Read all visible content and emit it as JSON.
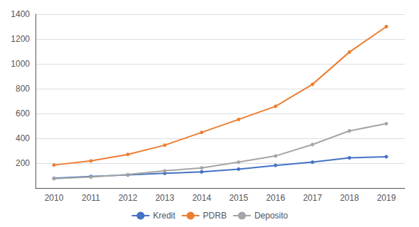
{
  "chart_data": {
    "type": "line",
    "categories": [
      "2010",
      "2011",
      "2012",
      "2013",
      "2014",
      "2015",
      "2016",
      "2017",
      "2018",
      "2019"
    ],
    "series": [
      {
        "name": "Kredit",
        "color": "#4472C4",
        "values": [
          78,
          93,
          105,
          118,
          130,
          152,
          182,
          208,
          243,
          252
        ]
      },
      {
        "name": "PDRB",
        "color": "#ED7D31",
        "values": [
          185,
          218,
          270,
          345,
          448,
          552,
          658,
          835,
          1095,
          1300
        ]
      },
      {
        "name": "Deposito",
        "color": "#A5A5A5",
        "values": [
          75,
          88,
          108,
          138,
          162,
          208,
          258,
          350,
          460,
          518
        ]
      }
    ],
    "marker": "circle",
    "ylim": [
      0,
      1400
    ],
    "yticks": [
      200,
      400,
      600,
      800,
      1000,
      1200,
      1400
    ],
    "grid": true,
    "legend": "bottom"
  }
}
